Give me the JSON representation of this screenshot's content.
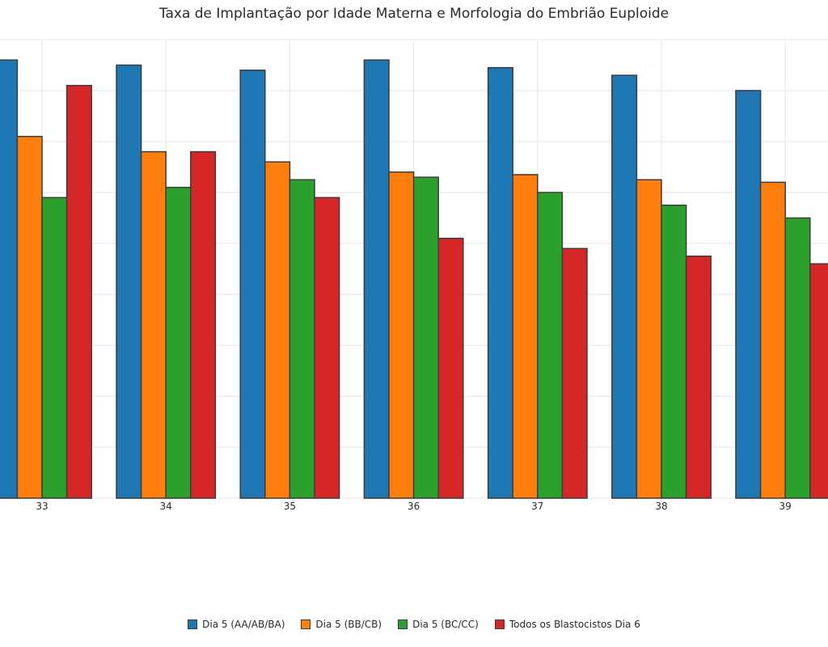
{
  "chart_data": {
    "type": "bar",
    "title": "Taxa de Implantação por Idade Materna e Morfologia do Embrião Euploide",
    "xlabel": "",
    "ylabel": "",
    "ylim": [
      0,
      0.9
    ],
    "grid": true,
    "legend_position": "bottom",
    "categories": [
      "33",
      "34",
      "35",
      "36",
      "37",
      "38",
      "39"
    ],
    "series": [
      {
        "name": "Dia 5 (AA/AB/BA)",
        "color": "#1f77b4",
        "values": [
          0.86,
          0.85,
          0.84,
          0.86,
          0.845,
          0.83,
          0.8
        ]
      },
      {
        "name": "Dia 5 (BB/CB)",
        "color": "#ff7f0e",
        "values": [
          0.71,
          0.68,
          0.66,
          0.64,
          0.635,
          0.625,
          0.62
        ]
      },
      {
        "name": "Dia 5 (BC/CC)",
        "color": "#2ca02c",
        "values": [
          0.59,
          0.61,
          0.625,
          0.63,
          0.6,
          0.575,
          0.55
        ]
      },
      {
        "name": "Todos os Blastocistos Dia 6",
        "color": "#d62728",
        "values": [
          0.81,
          0.68,
          0.59,
          0.51,
          0.49,
          0.475,
          0.46
        ]
      }
    ]
  }
}
